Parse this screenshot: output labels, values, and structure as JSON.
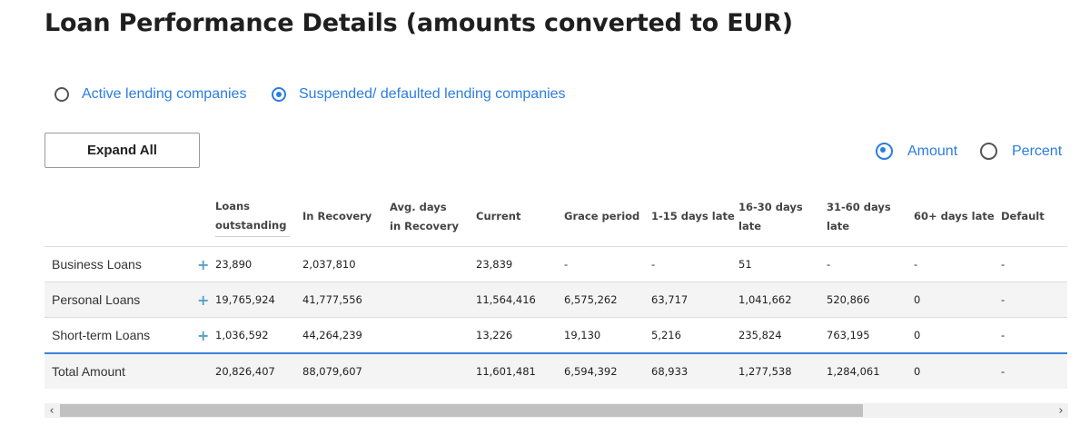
{
  "title": "Loan Performance Details (amounts converted to EUR)",
  "company_filter": {
    "options": [
      {
        "label": "Active lending companies",
        "selected": false
      },
      {
        "label": "Suspended/ defaulted lending companies",
        "selected": true
      }
    ]
  },
  "expand_all_label": "Expand All",
  "display_mode": {
    "options": [
      {
        "label": "Amount",
        "selected": true
      },
      {
        "label": "Percent",
        "selected": false
      }
    ]
  },
  "table": {
    "headers": {
      "loans_outstanding": "Loans outstanding",
      "in_recovery": "In Recovery",
      "avg_days": "Avg. days in Recovery",
      "current": "Current",
      "grace": "Grace period",
      "d1_15": "1-15 days late",
      "d16_30": "16-30 days late",
      "d31_60": "31-60 days late",
      "d60p": "60+ days late",
      "default": "Default"
    },
    "rows": [
      {
        "label": "Business Loans",
        "loans": "23,890",
        "recovery": "2,037,810",
        "avg": "",
        "current": "23,839",
        "grace": "-",
        "d1_15": "-",
        "d16_30": "51",
        "d31_60": "-",
        "d60p": "-",
        "default": "-"
      },
      {
        "label": "Personal Loans",
        "loans": "19,765,924",
        "recovery": "41,777,556",
        "avg": "",
        "current": "11,564,416",
        "grace": "6,575,262",
        "d1_15": "63,717",
        "d16_30": "1,041,662",
        "d31_60": "520,866",
        "d60p": "0",
        "default": "-"
      },
      {
        "label": "Short-term Loans",
        "loans": "1,036,592",
        "recovery": "44,264,239",
        "avg": "",
        "current": "13,226",
        "grace": "19,130",
        "d1_15": "5,216",
        "d16_30": "235,824",
        "d31_60": "763,195",
        "d60p": "0",
        "default": "-"
      }
    ],
    "total": {
      "label": "Total Amount",
      "loans": "20,826,407",
      "recovery": "88,079,607",
      "avg": "",
      "current": "11,601,481",
      "grace": "6,594,392",
      "d1_15": "68,933",
      "d16_30": "1,277,538",
      "d31_60": "1,284,061",
      "d60p": "0",
      "default": "-"
    }
  },
  "scroll": {
    "left_arrow": "‹",
    "right_arrow": "›"
  },
  "colors": {
    "accent": "#2b7de0",
    "total_border": "#3b82d6",
    "plus_icon": "#5aa0c8"
  }
}
